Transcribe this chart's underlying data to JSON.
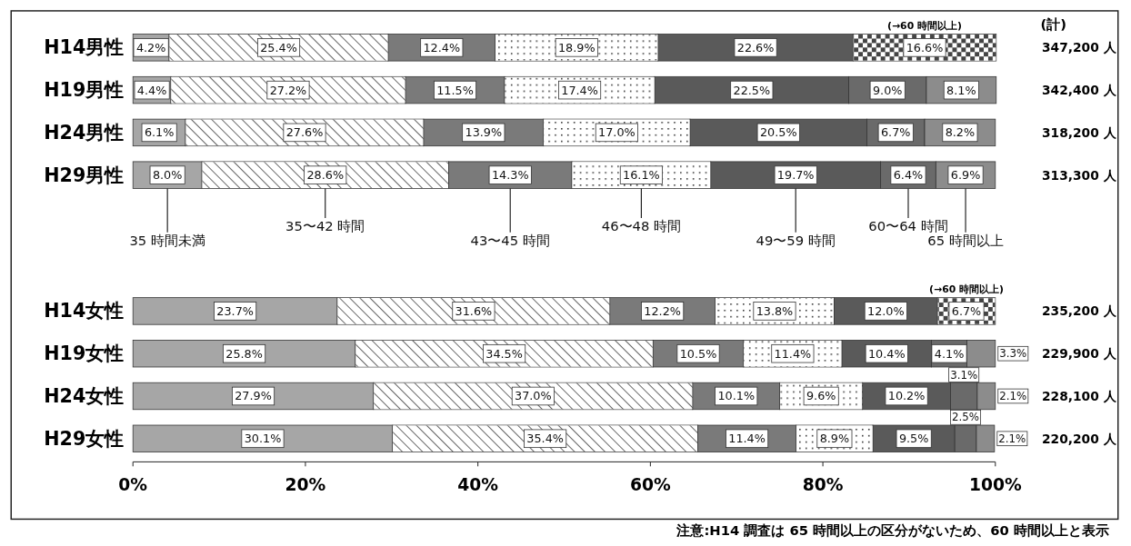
{
  "chart_data": {
    "type": "bar",
    "orientation": "horizontal",
    "stacked": true,
    "grid": false,
    "categories": [
      "H14男性",
      "H19男性",
      "H24男性",
      "H29男性",
      "H14女性",
      "H19女性",
      "H24女性",
      "H29女性"
    ],
    "xlim": [
      0,
      100
    ],
    "xticks": [
      {
        "value": 0,
        "label": "0%"
      },
      {
        "value": 20,
        "label": "20%"
      },
      {
        "value": 40,
        "label": "40%"
      },
      {
        "value": 60,
        "label": "60%"
      },
      {
        "value": 80,
        "label": "80%"
      },
      {
        "value": 100,
        "label": "100%"
      }
    ],
    "series": [
      {
        "name": "35 時間未満",
        "color": "#a6a6a6",
        "values": [
          4.2,
          4.4,
          6.1,
          8.0,
          23.7,
          25.8,
          27.9,
          30.1
        ],
        "value_labels": [
          "4.2%",
          "4.4%",
          "6.1%",
          "8.0%",
          "23.7%",
          "25.8%",
          "27.9%",
          "30.1%"
        ]
      },
      {
        "name": "35〜42 時間",
        "color": "#ffffff",
        "values": [
          25.4,
          27.2,
          27.6,
          28.6,
          31.6,
          34.5,
          37.0,
          35.4
        ],
        "value_labels": [
          "25.4%",
          "27.2%",
          "27.6%",
          "28.6%",
          "31.6%",
          "34.5%",
          "37.0%",
          "35.4%"
        ]
      },
      {
        "name": "43〜45 時間",
        "color": "#7a7a7a",
        "values": [
          12.4,
          11.5,
          13.9,
          14.3,
          12.2,
          10.5,
          10.1,
          11.4
        ],
        "value_labels": [
          "12.4%",
          "11.5%",
          "13.9%",
          "14.3%",
          "12.2%",
          "10.5%",
          "10.1%",
          "11.4%"
        ]
      },
      {
        "name": "46〜48 時間",
        "color": "#ffffff",
        "values": [
          18.9,
          17.4,
          17.0,
          16.1,
          13.8,
          11.4,
          9.6,
          8.9
        ],
        "value_labels": [
          "18.9%",
          "17.4%",
          "17.0%",
          "16.1%",
          "13.8%",
          "11.4%",
          "9.6%",
          "8.9%"
        ]
      },
      {
        "name": "49〜59 時間",
        "color": "#5a5a5a",
        "values": [
          22.6,
          22.5,
          20.5,
          19.7,
          12.0,
          10.4,
          10.2,
          9.5
        ],
        "value_labels": [
          "22.6%",
          "22.5%",
          "20.5%",
          "19.7%",
          "12.0%",
          "10.4%",
          "10.2%",
          "9.5%"
        ]
      },
      {
        "name": "60〜64 時間",
        "color": "#6a6a6a",
        "values": [
          null,
          9.0,
          6.7,
          6.4,
          null,
          4.1,
          3.1,
          2.5
        ],
        "value_labels": [
          null,
          "9.0%",
          "6.7%",
          "6.4%",
          null,
          "4.1%",
          "3.1%",
          "2.5%"
        ]
      },
      {
        "name": "65 時間以上",
        "color": "#8c8c8c",
        "values": [
          null,
          8.1,
          8.2,
          6.9,
          null,
          3.3,
          2.1,
          2.1
        ],
        "value_labels": [
          null,
          "8.1%",
          "8.2%",
          "6.9%",
          null,
          "3.3%",
          "2.1%",
          "2.1%"
        ]
      },
      {
        "name": "(→60 時間以上)",
        "color": "#ffffff",
        "values": [
          16.6,
          null,
          null,
          null,
          6.7,
          null,
          null,
          null
        ],
        "value_labels": [
          "16.6%",
          null,
          null,
          null,
          "6.7%",
          null,
          null,
          null
        ]
      }
    ],
    "annotations": [
      "(計)",
      "347,200 人",
      "342,400 人",
      "318,200 人",
      "313,300 人",
      "235,200 人",
      "229,900 人",
      "228,100 人",
      "220,200 人",
      "注意:H14 調査は 65 時間以上の区分がないため、60 時間以上と表示"
    ]
  }
}
